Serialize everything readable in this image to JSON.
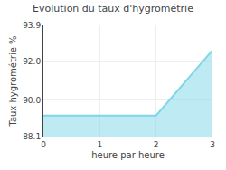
{
  "chart_data": {
    "type": "area",
    "title": "Evolution du taux d'hygrométrie",
    "x_label": "heure par heure",
    "y_label": "Taux hygrométrie %",
    "x": [
      0,
      2,
      3
    ],
    "values": [
      89.2,
      89.2,
      92.6
    ],
    "color": "#7dd6e8",
    "xlim": [
      0,
      3
    ],
    "xticks": [
      0,
      1,
      2,
      3
    ],
    "ylim": [
      88.1,
      93.9
    ],
    "yticks": [
      88.1,
      {
        "value": 90.0,
        "label": "90.0"
      },
      {
        "value": 92.0,
        "label": "92.0"
      },
      93.9
    ],
    "grid": true
  }
}
